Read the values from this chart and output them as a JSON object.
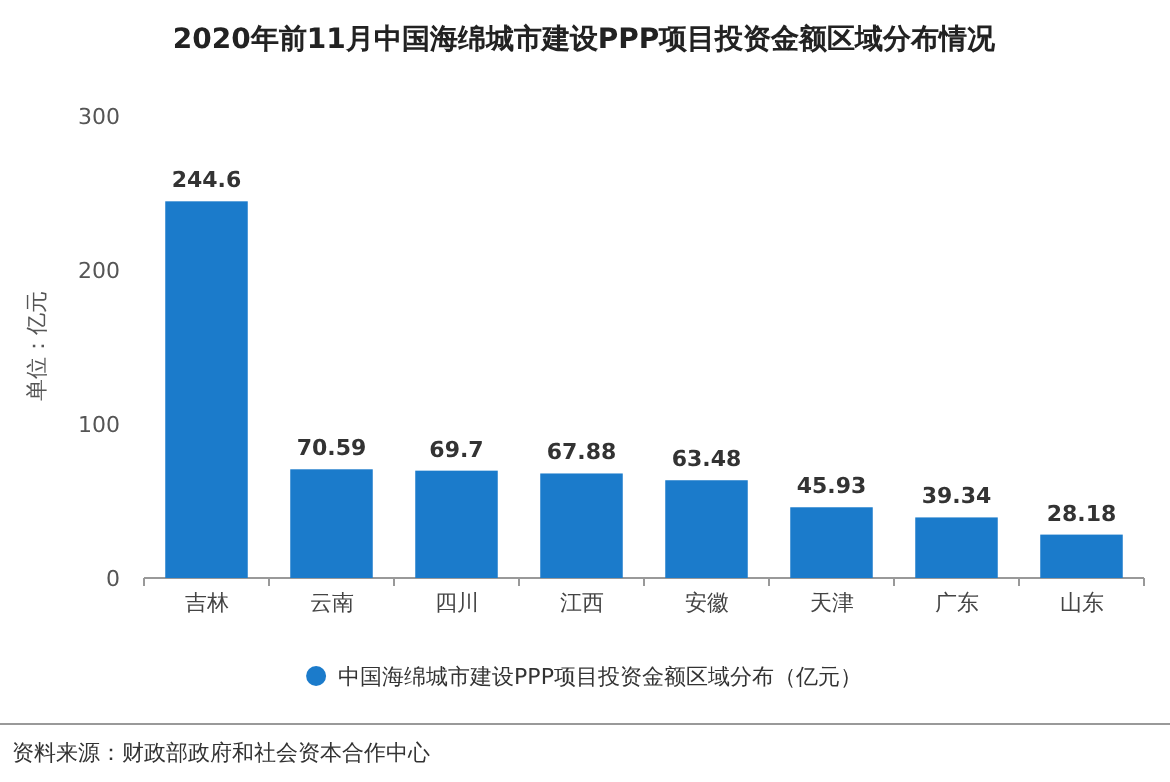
{
  "chart_data": {
    "type": "bar",
    "title": "2020年前11月中国海绵城市建设PPP项目投资金额区域分布情况",
    "ylabel": "单位：亿元",
    "categories": [
      "吉林",
      "云南",
      "四川",
      "江西",
      "安徽",
      "天津",
      "广东",
      "山东"
    ],
    "series": [
      {
        "name": "中国海绵城市建设PPP项目投资金额区域分布（亿元）",
        "color": "#1b7bcb",
        "values": [
          244.6,
          70.59,
          69.7,
          67.88,
          63.48,
          45.93,
          39.34,
          28.18
        ]
      }
    ],
    "ylim": [
      0,
      300
    ],
    "yticks": [
      0,
      100,
      200,
      300
    ],
    "data_labels": true,
    "legend": "bottom",
    "grid": false,
    "annotations": [
      "资料来源：财政部政府和社会资本合作中心"
    ]
  }
}
